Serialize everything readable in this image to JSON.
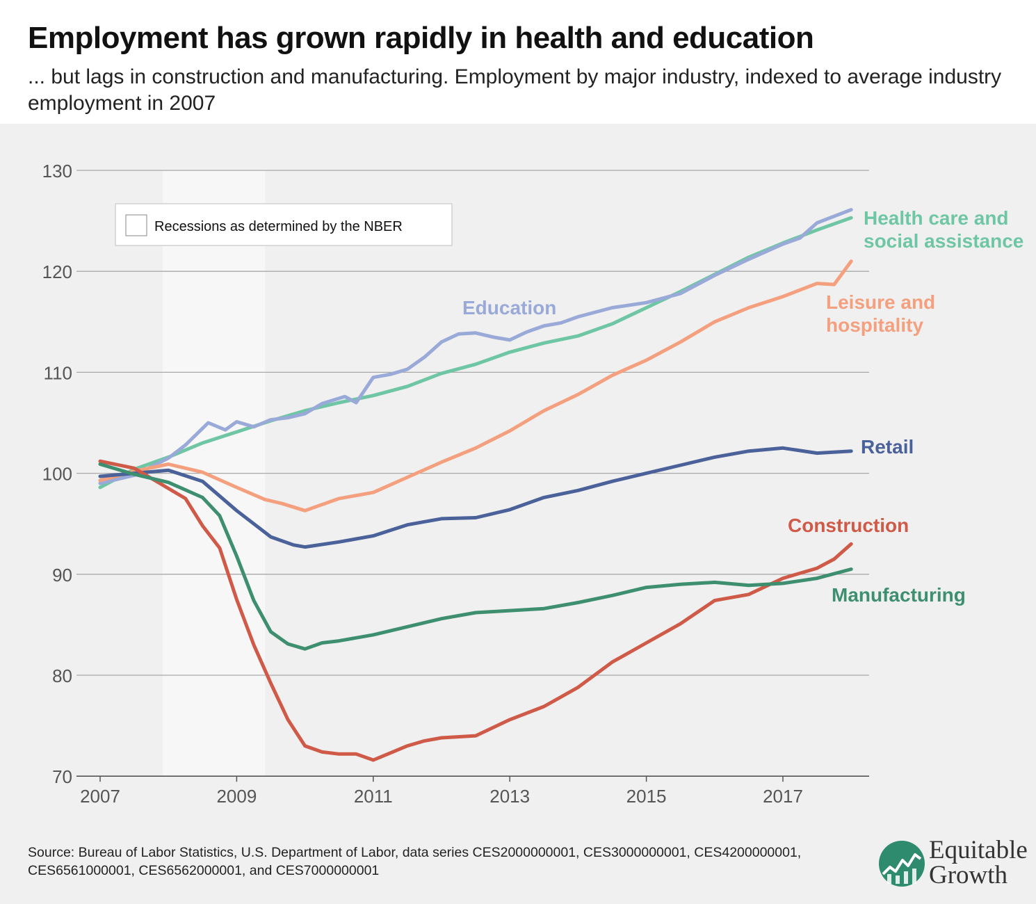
{
  "title": "Employment has grown rapidly in health and education",
  "subtitle": "... but lags in construction and manufacturing. Employment by major industry, indexed to average industry employment in 2007",
  "source": "Source: Bureau of Labor Statistics, U.S. Department of Labor, data series CES2000000001, CES3000000001, CES4200000001, CES6561000001, CES6562000001, and CES7000000001",
  "logo": {
    "line1": "Equitable",
    "line2": "Growth",
    "icon": "growth-chart-logo-icon",
    "color": "#2e8b6e"
  },
  "legend": {
    "label": "Recessions as determined by the NBER"
  },
  "chart_data": {
    "type": "line",
    "x_ticks": [
      "2007",
      "2009",
      "2011",
      "2013",
      "2015",
      "2017"
    ],
    "y_ticks": [
      70,
      80,
      90,
      100,
      110,
      120,
      130
    ],
    "xlim": [
      "2007-01",
      "2018-04"
    ],
    "ylim": [
      70,
      130
    ],
    "grid": true,
    "recession": {
      "start": "2007-12",
      "end": "2009-06",
      "color": "#f7f7f7"
    },
    "series": [
      {
        "name": "Health care and\nsocial assistance",
        "color": "#6fc6a5",
        "points": [
          [
            "2007-01",
            98.6
          ],
          [
            "2007-07",
            100.4
          ],
          [
            "2008-01",
            101.6
          ],
          [
            "2008-07",
            103.0
          ],
          [
            "2009-01",
            104.1
          ],
          [
            "2009-07",
            105.2
          ],
          [
            "2010-01",
            106.2
          ],
          [
            "2010-07",
            107.0
          ],
          [
            "2011-01",
            107.7
          ],
          [
            "2011-07",
            108.6
          ],
          [
            "2012-01",
            109.9
          ],
          [
            "2012-07",
            110.8
          ],
          [
            "2013-01",
            112.0
          ],
          [
            "2013-07",
            112.9
          ],
          [
            "2014-01",
            113.6
          ],
          [
            "2014-07",
            114.8
          ],
          [
            "2015-01",
            116.4
          ],
          [
            "2015-07",
            118.0
          ],
          [
            "2016-01",
            119.7
          ],
          [
            "2016-07",
            121.4
          ],
          [
            "2017-01",
            122.8
          ],
          [
            "2017-07",
            124.1
          ],
          [
            "2018-01",
            125.3
          ]
        ]
      },
      {
        "name": "Education",
        "color": "#9aaad8",
        "points": [
          [
            "2007-01",
            99.0
          ],
          [
            "2007-07",
            99.8
          ],
          [
            "2008-01",
            101.5
          ],
          [
            "2008-04",
            102.8
          ],
          [
            "2008-08",
            105.0
          ],
          [
            "2008-11",
            104.3
          ],
          [
            "2009-01",
            105.1
          ],
          [
            "2009-04",
            104.6
          ],
          [
            "2009-07",
            105.3
          ],
          [
            "2009-10",
            105.5
          ],
          [
            "2010-01",
            105.9
          ],
          [
            "2010-04",
            106.9
          ],
          [
            "2010-08",
            107.6
          ],
          [
            "2010-10",
            107.0
          ],
          [
            "2011-01",
            109.5
          ],
          [
            "2011-04",
            109.8
          ],
          [
            "2011-07",
            110.3
          ],
          [
            "2011-10",
            111.5
          ],
          [
            "2012-01",
            113.0
          ],
          [
            "2012-04",
            113.8
          ],
          [
            "2012-07",
            113.9
          ],
          [
            "2012-10",
            113.5
          ],
          [
            "2013-01",
            113.2
          ],
          [
            "2013-04",
            114.0
          ],
          [
            "2013-07",
            114.6
          ],
          [
            "2013-10",
            114.9
          ],
          [
            "2014-01",
            115.5
          ],
          [
            "2014-07",
            116.4
          ],
          [
            "2015-01",
            116.9
          ],
          [
            "2015-07",
            117.8
          ],
          [
            "2016-01",
            119.6
          ],
          [
            "2016-07",
            121.2
          ],
          [
            "2017-01",
            122.7
          ],
          [
            "2017-04",
            123.3
          ],
          [
            "2017-07",
            124.8
          ],
          [
            "2018-01",
            126.1
          ]
        ]
      },
      {
        "name": "Leisure and\nhospitality",
        "color": "#f4a07e",
        "points": [
          [
            "2007-01",
            99.3
          ],
          [
            "2007-07",
            100.2
          ],
          [
            "2008-01",
            100.9
          ],
          [
            "2008-07",
            100.1
          ],
          [
            "2009-01",
            98.6
          ],
          [
            "2009-06",
            97.4
          ],
          [
            "2009-09",
            97.0
          ],
          [
            "2010-01",
            96.3
          ],
          [
            "2010-07",
            97.5
          ],
          [
            "2011-01",
            98.1
          ],
          [
            "2011-07",
            99.6
          ],
          [
            "2012-01",
            101.1
          ],
          [
            "2012-07",
            102.5
          ],
          [
            "2013-01",
            104.2
          ],
          [
            "2013-07",
            106.2
          ],
          [
            "2014-01",
            107.8
          ],
          [
            "2014-07",
            109.7
          ],
          [
            "2015-01",
            111.2
          ],
          [
            "2015-07",
            113.0
          ],
          [
            "2016-01",
            115.0
          ],
          [
            "2016-07",
            116.4
          ],
          [
            "2017-01",
            117.5
          ],
          [
            "2017-07",
            118.8
          ],
          [
            "2017-10",
            118.7
          ],
          [
            "2018-01",
            121.0
          ]
        ]
      },
      {
        "name": "Retail",
        "color": "#4a6199",
        "points": [
          [
            "2007-01",
            99.7
          ],
          [
            "2007-07",
            100.0
          ],
          [
            "2008-01",
            100.3
          ],
          [
            "2008-07",
            99.2
          ],
          [
            "2009-01",
            96.3
          ],
          [
            "2009-07",
            93.7
          ],
          [
            "2009-11",
            92.9
          ],
          [
            "2010-01",
            92.7
          ],
          [
            "2010-07",
            93.2
          ],
          [
            "2011-01",
            93.8
          ],
          [
            "2011-07",
            94.9
          ],
          [
            "2012-01",
            95.5
          ],
          [
            "2012-07",
            95.6
          ],
          [
            "2013-01",
            96.4
          ],
          [
            "2013-07",
            97.6
          ],
          [
            "2014-01",
            98.3
          ],
          [
            "2014-07",
            99.2
          ],
          [
            "2015-01",
            100.0
          ],
          [
            "2015-07",
            100.8
          ],
          [
            "2016-01",
            101.6
          ],
          [
            "2016-07",
            102.2
          ],
          [
            "2017-01",
            102.5
          ],
          [
            "2017-07",
            102.0
          ],
          [
            "2018-01",
            102.2
          ]
        ]
      },
      {
        "name": "Construction",
        "color": "#cf5a47",
        "points": [
          [
            "2007-01",
            101.2
          ],
          [
            "2007-07",
            100.5
          ],
          [
            "2008-01",
            98.5
          ],
          [
            "2008-04",
            97.5
          ],
          [
            "2008-07",
            94.8
          ],
          [
            "2008-10",
            92.6
          ],
          [
            "2009-01",
            87.5
          ],
          [
            "2009-04",
            83.0
          ],
          [
            "2009-07",
            79.2
          ],
          [
            "2009-10",
            75.6
          ],
          [
            "2010-01",
            73.0
          ],
          [
            "2010-04",
            72.4
          ],
          [
            "2010-07",
            72.2
          ],
          [
            "2010-10",
            72.2
          ],
          [
            "2011-01",
            71.6
          ],
          [
            "2011-04",
            72.3
          ],
          [
            "2011-07",
            73.0
          ],
          [
            "2011-10",
            73.5
          ],
          [
            "2012-01",
            73.8
          ],
          [
            "2012-07",
            74.0
          ],
          [
            "2013-01",
            75.6
          ],
          [
            "2013-07",
            76.9
          ],
          [
            "2014-01",
            78.8
          ],
          [
            "2014-07",
            81.3
          ],
          [
            "2015-01",
            83.2
          ],
          [
            "2015-07",
            85.1
          ],
          [
            "2016-01",
            87.4
          ],
          [
            "2016-07",
            88.0
          ],
          [
            "2017-01",
            89.6
          ],
          [
            "2017-07",
            90.6
          ],
          [
            "2017-10",
            91.5
          ],
          [
            "2018-01",
            93.0
          ]
        ]
      },
      {
        "name": "Manufacturing",
        "color": "#3e8f70",
        "points": [
          [
            "2007-01",
            100.9
          ],
          [
            "2007-07",
            99.9
          ],
          [
            "2008-01",
            99.1
          ],
          [
            "2008-07",
            97.6
          ],
          [
            "2008-10",
            95.8
          ],
          [
            "2009-01",
            91.8
          ],
          [
            "2009-04",
            87.4
          ],
          [
            "2009-07",
            84.3
          ],
          [
            "2009-10",
            83.1
          ],
          [
            "2010-01",
            82.6
          ],
          [
            "2010-04",
            83.2
          ],
          [
            "2010-07",
            83.4
          ],
          [
            "2011-01",
            84.0
          ],
          [
            "2011-07",
            84.8
          ],
          [
            "2012-01",
            85.6
          ],
          [
            "2012-07",
            86.2
          ],
          [
            "2013-01",
            86.4
          ],
          [
            "2013-07",
            86.6
          ],
          [
            "2014-01",
            87.2
          ],
          [
            "2014-07",
            87.9
          ],
          [
            "2015-01",
            88.7
          ],
          [
            "2015-07",
            89.0
          ],
          [
            "2016-01",
            89.2
          ],
          [
            "2016-07",
            88.9
          ],
          [
            "2017-01",
            89.1
          ],
          [
            "2017-07",
            89.6
          ],
          [
            "2018-01",
            90.5
          ]
        ]
      }
    ]
  }
}
